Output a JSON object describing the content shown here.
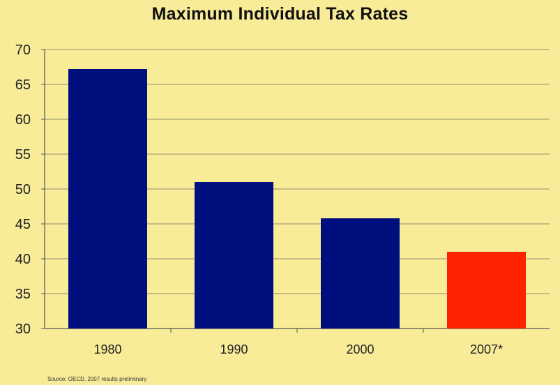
{
  "chart_data": {
    "type": "bar",
    "title": "Maximum Individual Tax Rates",
    "categories": [
      "1980",
      "1990",
      "2000",
      "2007*"
    ],
    "values": [
      67.2,
      51,
      45.8,
      41
    ],
    "ylim": [
      30,
      70
    ],
    "yticks": [
      30,
      35,
      40,
      45,
      50,
      55,
      60,
      65,
      70
    ],
    "xlabel": "",
    "ylabel": "",
    "grid": true,
    "colors": [
      "#000f7e",
      "#000f7e",
      "#000f7e",
      "#ff2200"
    ],
    "source_note": "Source: OECD, 2007 results preliminary"
  },
  "colors": {
    "background": "#f8ec98",
    "gridline": "#8f8f70",
    "axis": "#555555"
  }
}
